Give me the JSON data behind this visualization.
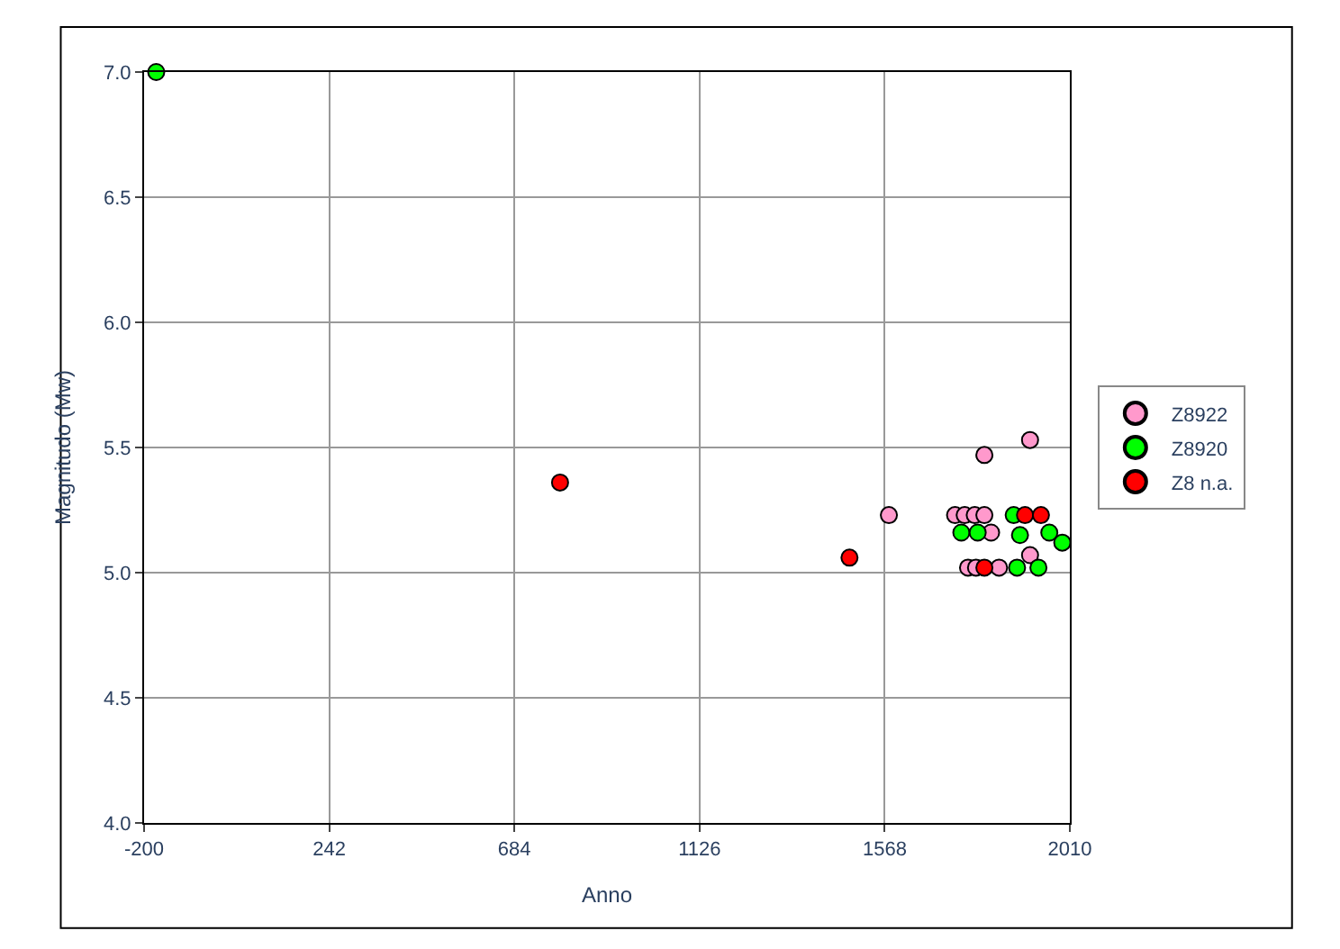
{
  "chart_data": {
    "type": "scatter",
    "xlabel": "Anno",
    "ylabel": "Magnitudo (Mw)",
    "xlim": [
      -200,
      2010
    ],
    "xticks": [
      -200,
      242,
      684,
      1126,
      1568,
      2010
    ],
    "ylim": [
      4.0,
      7.0
    ],
    "yticks": [
      {
        "value": 4.0,
        "label": "4.0"
      },
      {
        "value": 4.5,
        "label": "4.5"
      },
      {
        "value": 5.0,
        "label": "5.0"
      },
      {
        "value": 5.5,
        "label": "5.5"
      },
      {
        "value": 6.0,
        "label": "6.0"
      },
      {
        "value": 6.5,
        "label": "6.5"
      },
      {
        "value": 7.0,
        "label": "7.0"
      }
    ],
    "grid": true,
    "legend": "right",
    "marker": "circle",
    "series": [
      {
        "name": "Z8922",
        "color": "#ff99cc",
        "x": [
          1806,
          1915,
          1578,
          1736,
          1759,
          1783,
          1806,
          1822,
          1767,
          1786,
          1841,
          1915
        ],
        "values": [
          5.47,
          5.53,
          5.23,
          5.23,
          5.23,
          5.23,
          5.23,
          5.16,
          5.02,
          5.02,
          5.02,
          5.07
        ]
      },
      {
        "name": "Z8920",
        "color": "#00ff00",
        "x": [
          -171,
          1751,
          1790,
          1876,
          1891,
          1961,
          1992,
          1884,
          1935
        ],
        "values": [
          7.0,
          5.16,
          5.16,
          5.23,
          5.15,
          5.16,
          5.12,
          5.02,
          5.02
        ]
      },
      {
        "name": "Z8 n.a.",
        "color": "#ff0000",
        "x": [
          793,
          1484,
          1903,
          1941,
          1806
        ],
        "values": [
          5.36,
          5.06,
          5.23,
          5.23,
          5.02
        ]
      }
    ]
  }
}
